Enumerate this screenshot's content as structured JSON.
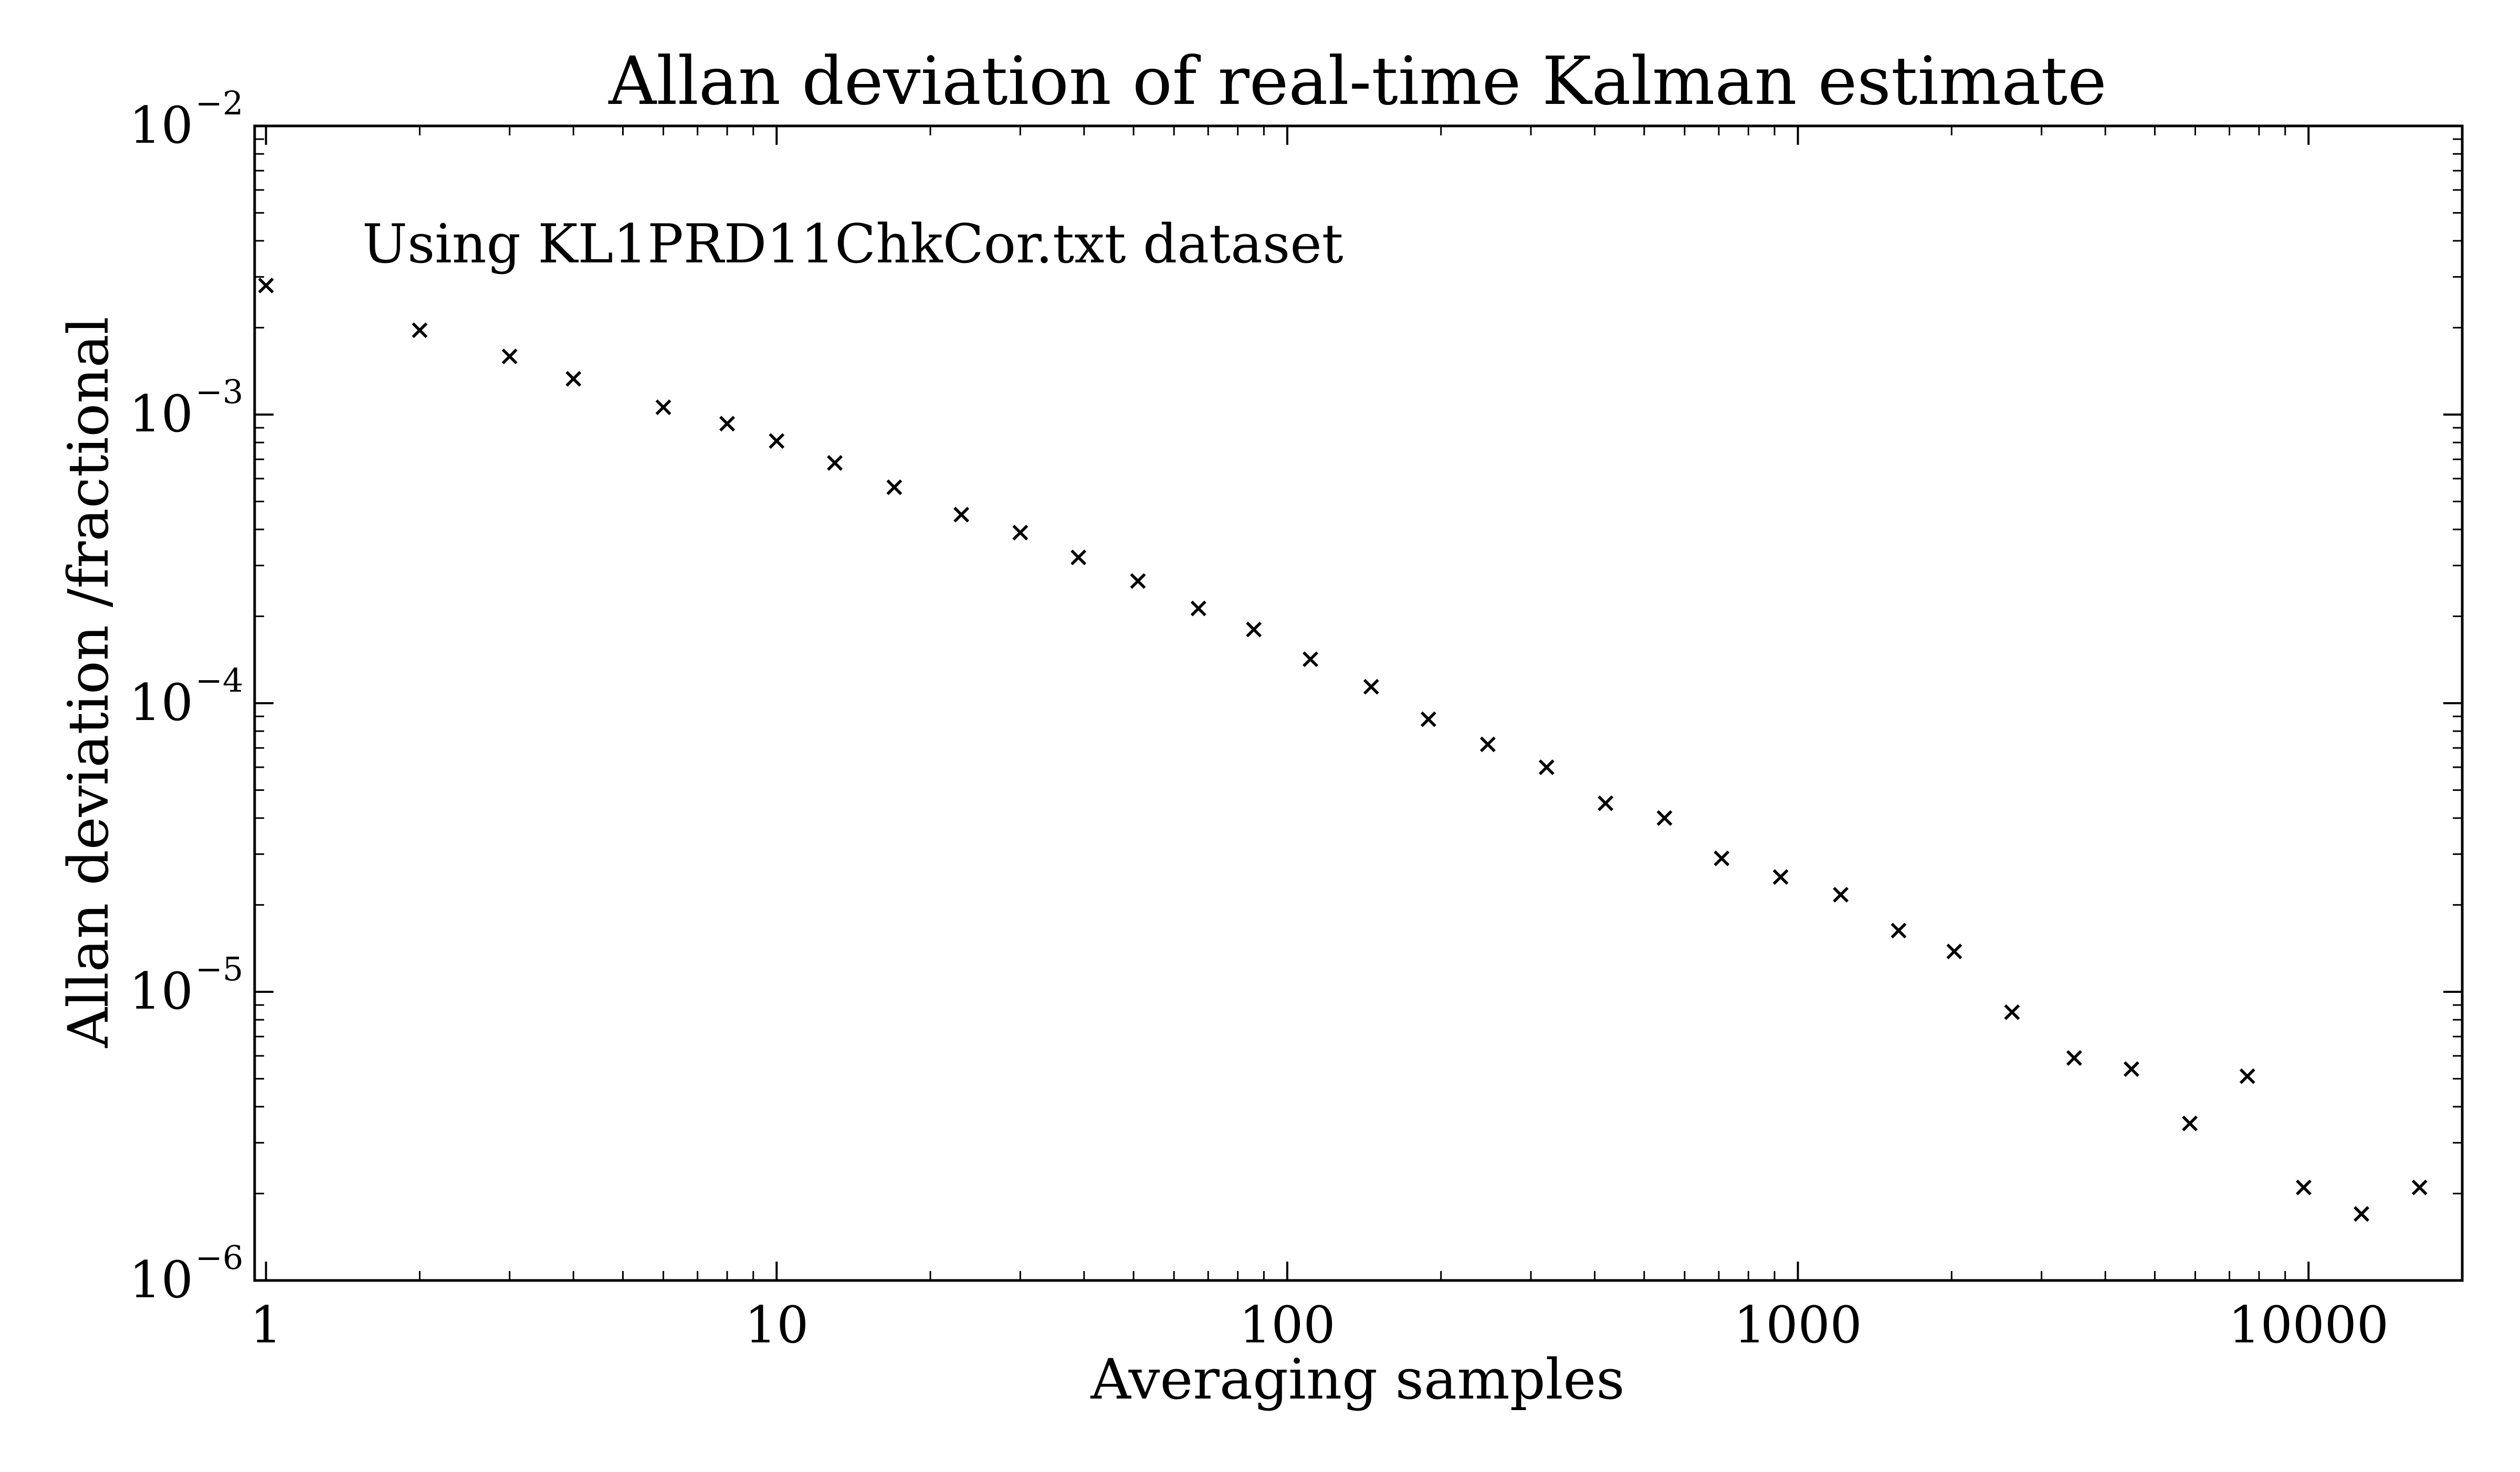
{
  "chart_data": {
    "type": "scatter",
    "title": "Allan deviation of real-time Kalman estimate",
    "xlabel": "Averaging samples",
    "ylabel": "Allan deviation /fractional",
    "xscale": "log",
    "yscale": "log",
    "xlim": [
      0.95,
      20000
    ],
    "ylim": [
      1e-06,
      0.01
    ],
    "grid": false,
    "legend": "none",
    "marker": "x",
    "marker_color": "#000000",
    "annotation": "Using KL1PRD11ChkCor.txt dataset",
    "x_ticks": [
      {
        "value": 1,
        "label": "1"
      },
      {
        "value": 10,
        "label": "10"
      },
      {
        "value": 100,
        "label": "100"
      },
      {
        "value": 1000,
        "label": "1000"
      },
      {
        "value": 10000,
        "label": "10000"
      }
    ],
    "y_ticks": [
      {
        "value": 0.01,
        "base": "10",
        "exponent": "−2"
      },
      {
        "value": 0.001,
        "base": "10",
        "exponent": "−3"
      },
      {
        "value": 0.0001,
        "base": "10",
        "exponent": "−4"
      },
      {
        "value": 1e-05,
        "base": "10",
        "exponent": "−5"
      },
      {
        "value": 1e-06,
        "base": "10",
        "exponent": "−6"
      }
    ],
    "series": [
      {
        "x": [
          1,
          2,
          3,
          4,
          6,
          8,
          10,
          13,
          17,
          23,
          30,
          39,
          51,
          67,
          86,
          111,
          146,
          189,
          247,
          322,
          420,
          548,
          709,
          925,
          1213,
          1575,
          2024,
          2626,
          3476,
          4500,
          5855,
          7590,
          9784,
          12695,
          16500
        ],
        "y": [
          0.0028,
          0.00196,
          0.00159,
          0.00133,
          0.00106,
          0.00093,
          0.00081,
          0.00068,
          0.00056,
          0.00045,
          0.00039,
          0.00032,
          0.000265,
          0.000213,
          0.00018,
          0.000142,
          0.000114,
          8.8e-05,
          7.2e-05,
          6e-05,
          4.5e-05,
          4e-05,
          2.9e-05,
          2.5e-05,
          2.17e-05,
          1.63e-05,
          1.38e-05,
          8.5e-06,
          5.9e-06,
          5.4e-06,
          3.5e-06,
          5.1e-06,
          2.1e-06,
          1.7e-06,
          2.1e-06
        ]
      }
    ]
  }
}
